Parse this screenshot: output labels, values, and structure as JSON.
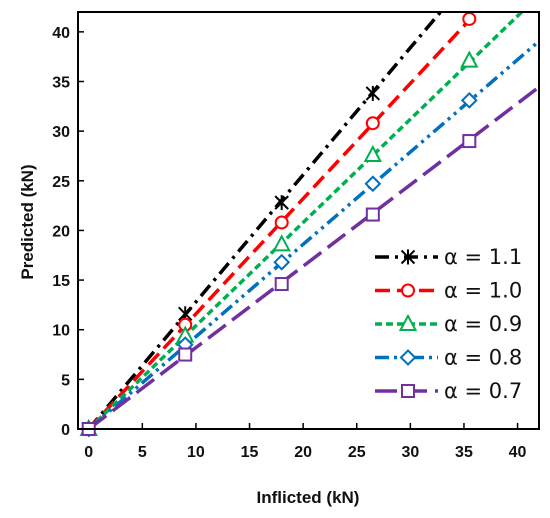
{
  "chart_data": {
    "type": "line",
    "xlabel": "Inflicted  (kN)",
    "ylabel": "Predicted (kN)",
    "xlim": [
      -1,
      42
    ],
    "ylim": [
      0,
      42
    ],
    "x_ticks": [
      0,
      5,
      10,
      15,
      20,
      25,
      30,
      35,
      40
    ],
    "y_ticks": [
      0,
      5,
      10,
      15,
      20,
      25,
      30,
      35,
      40
    ],
    "x_tick_labels": [
      "0",
      "5",
      "10",
      "15",
      "20",
      "25",
      "30",
      "35",
      "40"
    ],
    "y_tick_labels": [
      "0",
      "5",
      "10",
      "15",
      "20",
      "25",
      "30",
      "35",
      "40"
    ],
    "grid": false,
    "legend_position": "bottom-right",
    "series": [
      {
        "name": "α = 1.1",
        "color": "#000000",
        "marker": "asterisk",
        "dash": "dashdot",
        "slope": 1.28,
        "points": [
          [
            0,
            0
          ],
          [
            9,
            11.6
          ],
          [
            18,
            22.8
          ],
          [
            26.5,
            33.8
          ]
        ]
      },
      {
        "name": "α = 1.0",
        "color": "#ff0000",
        "marker": "circle",
        "dash": "dash",
        "slope": 1.16,
        "points": [
          [
            0,
            0
          ],
          [
            9,
            10.5
          ],
          [
            18,
            20.8
          ],
          [
            26.5,
            30.8
          ],
          [
            35.5,
            41.3
          ]
        ]
      },
      {
        "name": "α = 0.9",
        "color": "#00b050",
        "marker": "triangle",
        "dash": "shortdash",
        "slope": 1.04,
        "points": [
          [
            0,
            0
          ],
          [
            9,
            9.4
          ],
          [
            18,
            18.6
          ],
          [
            26.5,
            27.6
          ],
          [
            35.5,
            37.1
          ]
        ]
      },
      {
        "name": "α = 0.8",
        "color": "#0070c0",
        "marker": "diamond",
        "dash": "dashdotdot",
        "slope": 0.93,
        "points": [
          [
            0,
            0
          ],
          [
            9,
            8.5
          ],
          [
            18,
            16.8
          ],
          [
            26.5,
            24.7
          ],
          [
            35.5,
            33.1
          ]
        ]
      },
      {
        "name": "α = 0.7",
        "color": "#7030a0",
        "marker": "square",
        "dash": "longdash",
        "slope": 0.82,
        "points": [
          [
            0,
            0
          ],
          [
            9,
            7.5
          ],
          [
            18,
            14.6
          ],
          [
            26.5,
            21.6
          ],
          [
            35.5,
            29.0
          ]
        ]
      }
    ]
  }
}
